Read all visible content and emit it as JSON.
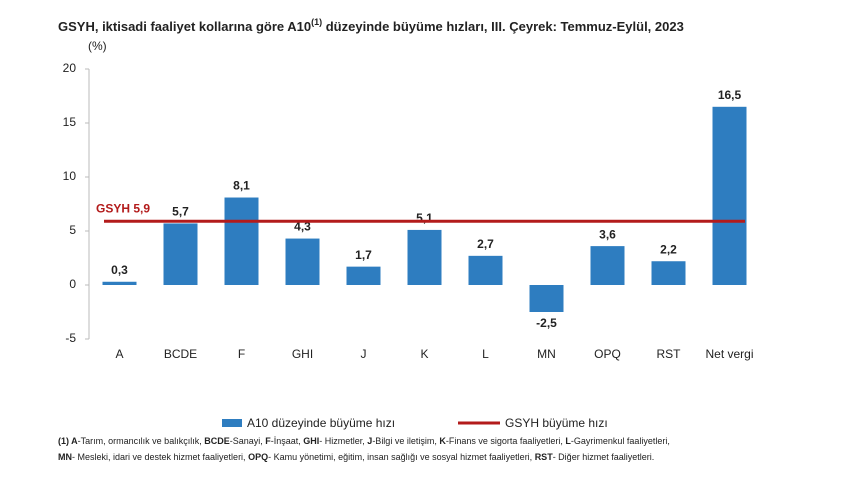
{
  "chart_data": {
    "type": "bar",
    "title": {
      "main": "GSYH, iktisadi faaliyet kollarına göre A10",
      "sup": "(1)",
      "rest": " düzeyinde büyüme hızları, III. Çeyrek: Temmuz-Eylül, 2023"
    },
    "y_unit": "(%)",
    "categories": [
      "A",
      "BCDE",
      "F",
      "GHI",
      "J",
      "K",
      "L",
      "MN",
      "OPQ",
      "RST",
      "Net vergi"
    ],
    "series": [
      {
        "name": "A10 düzeyinde büyüme hızı",
        "color": "#2e7dc0",
        "values": [
          0.3,
          5.7,
          8.1,
          4.3,
          1.7,
          5.1,
          2.7,
          -2.5,
          3.6,
          2.2,
          16.5
        ],
        "value_labels": [
          "0,3",
          "5,7",
          "8,1",
          "4,3",
          "1,7",
          "5,1",
          "2,7",
          "-2,5",
          "3,6",
          "2,2",
          "16,5"
        ]
      }
    ],
    "reference_line": {
      "name": "GSYH büyüme hızı",
      "value": 5.9,
      "label": "GSYH 5,9",
      "color": "#b31b1b"
    },
    "ylim": [
      -5,
      20
    ],
    "yticks": [
      -5,
      0,
      5,
      10,
      15,
      20
    ],
    "grid": false,
    "footnote": [
      [
        [
          "(1) A",
          "-Tarım, ormancılık ve balıkçılık, "
        ],
        [
          "BCDE",
          "-Sanayi, "
        ],
        [
          "F",
          "-İnşaat, "
        ],
        [
          "GHI",
          "- Hizmetler, "
        ],
        [
          "J",
          "-Bilgi ve iletişim, "
        ],
        [
          "K",
          "-Finans ve sigorta faaliyetleri, "
        ],
        [
          "L",
          "-Gayrimenkul faaliyetleri,"
        ]
      ],
      [
        [
          "MN",
          "- Mesleki, idari ve destek hizmet faaliyetleri, "
        ],
        [
          "OPQ",
          "- Kamu yönetimi, eğitim, insan sağlığı ve sosyal hizmet faaliyetleri, "
        ],
        [
          "RST",
          "- Diğer hizmet faaliyetleri."
        ]
      ]
    ]
  }
}
